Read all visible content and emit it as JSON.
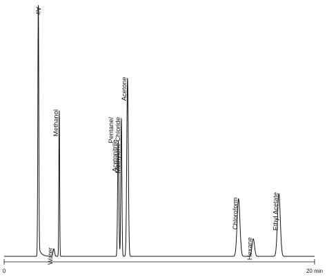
{
  "chart_data": {
    "type": "line",
    "title": "",
    "xlabel": "",
    "ylabel": "",
    "x_unit": "min",
    "xlim": [
      0,
      20
    ],
    "ylim": [
      0,
      100
    ],
    "grid": false,
    "legend": "none",
    "x_ticks": [
      {
        "value": 0,
        "label": "0"
      },
      {
        "value": 20,
        "label": "20 min"
      }
    ],
    "peaks": [
      {
        "name": "Air",
        "label_lines": [
          "Air"
        ],
        "time": 2.2,
        "height": 100,
        "width": 0.03,
        "tail": 6.0
      },
      {
        "name": "Water",
        "label_lines": [
          "Water"
        ],
        "time": 3.2,
        "height": 3,
        "width": 0.05
      },
      {
        "name": "Methanol",
        "label_lines": [
          "Methanol"
        ],
        "time": 3.55,
        "height": 58,
        "width": 0.025
      },
      {
        "name": "Acetonitrile",
        "label_lines": [
          "Acetonitrile"
        ],
        "time": 7.35,
        "height": 46,
        "width": 0.04
      },
      {
        "name": "Pentane/ Methylene Chloride",
        "label_lines": [
          "Pentane/",
          "Methylene Chloride"
        ],
        "time": 7.55,
        "height": 55,
        "width": 0.035
      },
      {
        "name": "Acetone",
        "label_lines": [
          "Acetone"
        ],
        "time": 7.95,
        "height": 71,
        "width": 0.05
      },
      {
        "name": "Chloroform",
        "label_lines": [
          "Chloroform"
        ],
        "time": 15.1,
        "height": 23,
        "width": 0.09
      },
      {
        "name": "Hexane",
        "label_lines": [
          "Hexane"
        ],
        "time": 16.05,
        "height": 7,
        "width": 0.08
      },
      {
        "name": "Ethyl Acetate",
        "label_lines": [
          "Ethyl Acetate"
        ],
        "time": 17.7,
        "height": 25,
        "width": 0.09
      }
    ]
  }
}
